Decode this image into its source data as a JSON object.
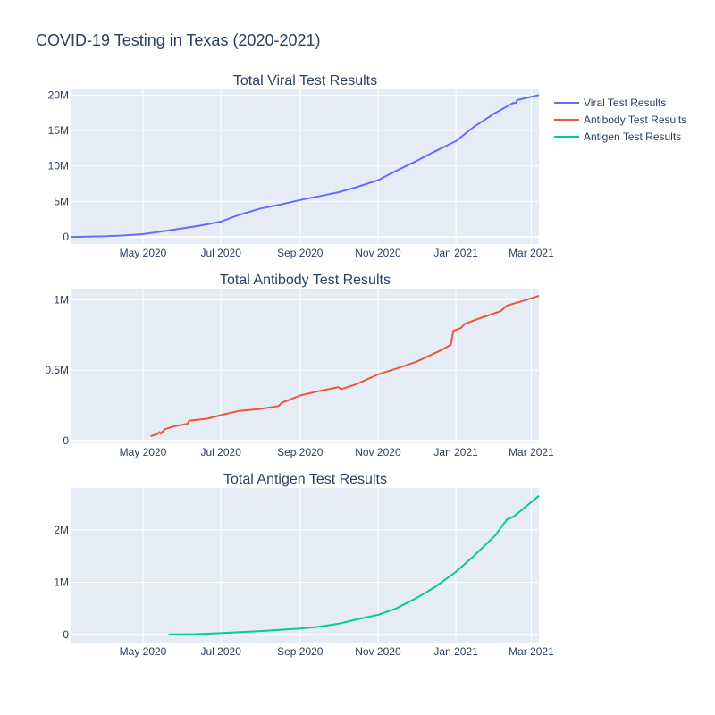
{
  "chart_title": "COVID-19 Testing in Texas (2020-2021)",
  "chart_data": [
    {
      "type": "line",
      "title": "Total Viral Test Results",
      "series_name": "Viral Test Results",
      "color": "#636efa",
      "xlabel": "",
      "ylabel": "",
      "xlim": [
        "2020-03-06",
        "2021-03-07"
      ],
      "ylim": [
        -1000000,
        20800000
      ],
      "x_ticks": [
        {
          "date": "2020-05-01",
          "label": "May 2020"
        },
        {
          "date": "2020-07-01",
          "label": "Jul 2020"
        },
        {
          "date": "2020-09-01",
          "label": "Sep 2020"
        },
        {
          "date": "2020-11-01",
          "label": "Nov 2020"
        },
        {
          "date": "2021-01-01",
          "label": "Jan 2021"
        },
        {
          "date": "2021-03-01",
          "label": "Mar 2021"
        }
      ],
      "y_ticks": [
        {
          "value": 0,
          "label": "0"
        },
        {
          "value": 5000000,
          "label": "5M"
        },
        {
          "value": 10000000,
          "label": "10M"
        },
        {
          "value": 15000000,
          "label": "15M"
        },
        {
          "value": 20000000,
          "label": "20M"
        }
      ],
      "points": [
        [
          "2020-03-06",
          0
        ],
        [
          "2020-04-01",
          80000
        ],
        [
          "2020-04-15",
          200000
        ],
        [
          "2020-05-01",
          380000
        ],
        [
          "2020-05-15",
          750000
        ],
        [
          "2020-06-01",
          1200000
        ],
        [
          "2020-06-15",
          1600000
        ],
        [
          "2020-07-01",
          2150000
        ],
        [
          "2020-07-15",
          3100000
        ],
        [
          "2020-08-01",
          4000000
        ],
        [
          "2020-08-15",
          4500000
        ],
        [
          "2020-09-01",
          5200000
        ],
        [
          "2020-09-15",
          5700000
        ],
        [
          "2020-10-01",
          6300000
        ],
        [
          "2020-10-15",
          7000000
        ],
        [
          "2020-11-01",
          8000000
        ],
        [
          "2020-11-15",
          9300000
        ],
        [
          "2020-12-01",
          10700000
        ],
        [
          "2020-12-15",
          12000000
        ],
        [
          "2021-01-01",
          13500000
        ],
        [
          "2021-01-15",
          15500000
        ],
        [
          "2021-02-01",
          17500000
        ],
        [
          "2021-02-15",
          18900000
        ],
        [
          "2021-02-17",
          18900000
        ],
        [
          "2021-02-18",
          19300000
        ],
        [
          "2021-03-07",
          20000000
        ]
      ]
    },
    {
      "type": "line",
      "title": "Total Antibody Test Results",
      "series_name": "Antibody Test Results",
      "color": "#ef553b",
      "xlabel": "",
      "ylabel": "",
      "xlim": [
        "2020-03-06",
        "2021-03-07"
      ],
      "ylim": [
        -20000,
        1080000
      ],
      "x_ticks": [
        {
          "date": "2020-05-01",
          "label": "May 2020"
        },
        {
          "date": "2020-07-01",
          "label": "Jul 2020"
        },
        {
          "date": "2020-09-01",
          "label": "Sep 2020"
        },
        {
          "date": "2020-11-01",
          "label": "Nov 2020"
        },
        {
          "date": "2021-01-01",
          "label": "Jan 2021"
        },
        {
          "date": "2021-03-01",
          "label": "Mar 2021"
        }
      ],
      "y_ticks": [
        {
          "value": 0,
          "label": "0"
        },
        {
          "value": 500000,
          "label": "0.5M"
        },
        {
          "value": 1000000,
          "label": "1M"
        }
      ],
      "points": [
        [
          "2020-05-07",
          30000
        ],
        [
          "2020-05-12",
          45000
        ],
        [
          "2020-05-14",
          60000
        ],
        [
          "2020-05-15",
          48000
        ],
        [
          "2020-05-18",
          80000
        ],
        [
          "2020-05-25",
          100000
        ],
        [
          "2020-06-05",
          120000
        ],
        [
          "2020-06-06",
          140000
        ],
        [
          "2020-06-20",
          155000
        ],
        [
          "2020-07-05",
          190000
        ],
        [
          "2020-07-15",
          210000
        ],
        [
          "2020-08-01",
          225000
        ],
        [
          "2020-08-15",
          245000
        ],
        [
          "2020-08-18",
          270000
        ],
        [
          "2020-09-01",
          320000
        ],
        [
          "2020-09-15",
          350000
        ],
        [
          "2020-10-01",
          380000
        ],
        [
          "2020-10-03",
          365000
        ],
        [
          "2020-10-15",
          400000
        ],
        [
          "2020-11-01",
          470000
        ],
        [
          "2020-11-15",
          510000
        ],
        [
          "2020-12-01",
          560000
        ],
        [
          "2020-12-20",
          640000
        ],
        [
          "2020-12-28",
          680000
        ],
        [
          "2020-12-30",
          780000
        ],
        [
          "2021-01-05",
          800000
        ],
        [
          "2021-01-08",
          830000
        ],
        [
          "2021-01-20",
          870000
        ],
        [
          "2021-02-05",
          920000
        ],
        [
          "2021-02-10",
          960000
        ],
        [
          "2021-02-25",
          1000000
        ],
        [
          "2021-03-07",
          1030000
        ]
      ]
    },
    {
      "type": "line",
      "title": "Total Antigen Test Results",
      "series_name": "Antigen Test Results",
      "color": "#00cc96",
      "xlabel": "",
      "ylabel": "",
      "xlim": [
        "2020-03-06",
        "2021-03-07"
      ],
      "ylim": [
        -150000,
        2800000
      ],
      "x_ticks": [
        {
          "date": "2020-05-01",
          "label": "May 2020"
        },
        {
          "date": "2020-07-01",
          "label": "Jul 2020"
        },
        {
          "date": "2020-09-01",
          "label": "Sep 2020"
        },
        {
          "date": "2020-11-01",
          "label": "Nov 2020"
        },
        {
          "date": "2021-01-01",
          "label": "Jan 2021"
        },
        {
          "date": "2021-03-01",
          "label": "Mar 2021"
        }
      ],
      "y_ticks": [
        {
          "value": 0,
          "label": "0"
        },
        {
          "value": 1000000,
          "label": "1M"
        },
        {
          "value": 2000000,
          "label": "2M"
        }
      ],
      "points": [
        [
          "2020-05-21",
          5000
        ],
        [
          "2020-06-10",
          10000
        ],
        [
          "2020-07-01",
          30000
        ],
        [
          "2020-08-01",
          70000
        ],
        [
          "2020-09-01",
          120000
        ],
        [
          "2020-09-15",
          150000
        ],
        [
          "2020-10-01",
          210000
        ],
        [
          "2020-10-15",
          290000
        ],
        [
          "2020-11-01",
          380000
        ],
        [
          "2020-11-15",
          500000
        ],
        [
          "2020-12-01",
          700000
        ],
        [
          "2020-12-15",
          900000
        ],
        [
          "2021-01-01",
          1200000
        ],
        [
          "2021-01-15",
          1500000
        ],
        [
          "2021-02-01",
          1900000
        ],
        [
          "2021-02-10",
          2200000
        ],
        [
          "2021-02-15",
          2250000
        ],
        [
          "2021-02-25",
          2450000
        ],
        [
          "2021-03-07",
          2650000
        ]
      ]
    }
  ]
}
